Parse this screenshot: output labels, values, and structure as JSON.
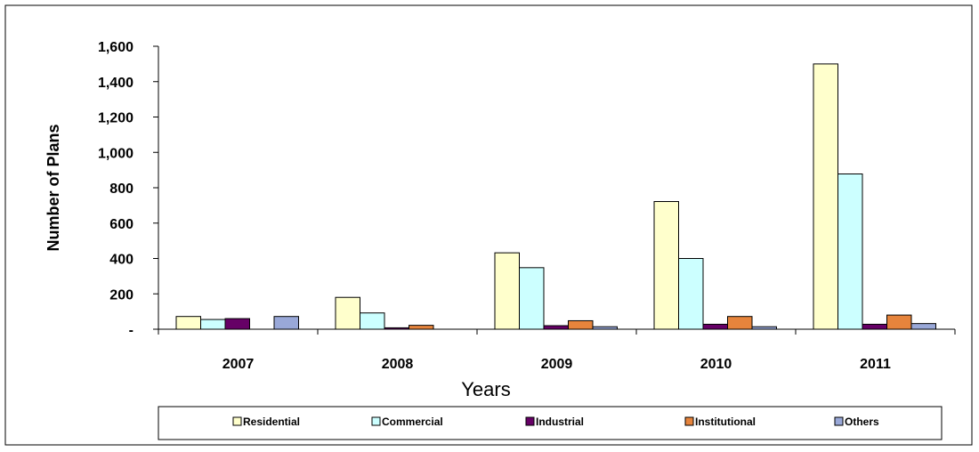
{
  "chart_data": {
    "type": "bar",
    "title": "",
    "xlabel": "Years",
    "ylabel": "Number of Plans",
    "categories": [
      "2007",
      "2008",
      "2009",
      "2010",
      "2011"
    ],
    "ylim": [
      0,
      1600
    ],
    "yticks": [
      0,
      200,
      400,
      600,
      800,
      1000,
      1200,
      1400,
      1600
    ],
    "ytick_labels": [
      "-",
      "200",
      "400",
      "600",
      "800",
      "1,000",
      "1,200",
      "1,400",
      "1,600"
    ],
    "grid": false,
    "legend_position": "bottom",
    "series": [
      {
        "name": "Residential",
        "color": "#FFFFCC",
        "values": [
          72,
          180,
          432,
          722,
          1500
        ]
      },
      {
        "name": "Commercial",
        "color": "#CCFFFF",
        "values": [
          55,
          92,
          348,
          400,
          878
        ]
      },
      {
        "name": "Industrial",
        "color": "#660066",
        "values": [
          60,
          8,
          20,
          28,
          28
        ]
      },
      {
        "name": "Institutional",
        "color": "#E6843C",
        "values": [
          0,
          22,
          48,
          72,
          80
        ]
      },
      {
        "name": "Others",
        "color": "#99A8D8",
        "values": [
          72,
          0,
          14,
          14,
          32
        ]
      }
    ]
  }
}
